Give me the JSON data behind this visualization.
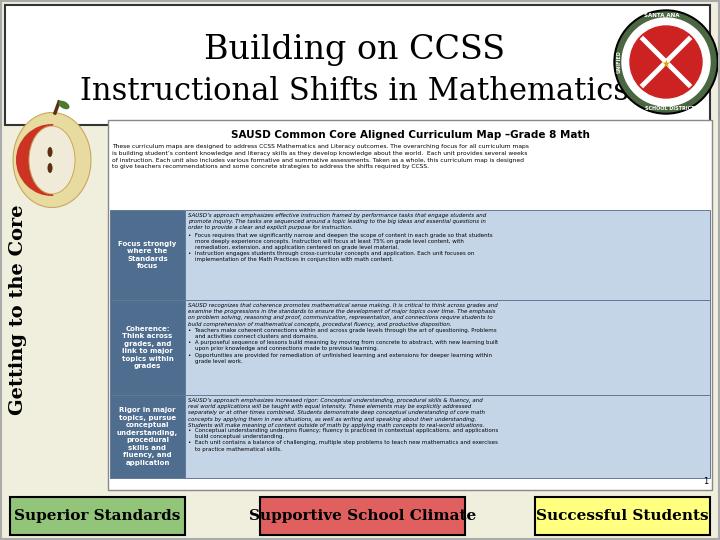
{
  "title_line1": "Building on CCSS",
  "title_line2": "Instructional Shifts in Mathematics",
  "bg_color": "#f0eedc",
  "sidebar_text": "Getting to the Core",
  "doc_title": "SAUSD Common Core Aligned Curriculum Map –Grade 8 Math",
  "table_rows": [
    {
      "left": "Focus strongly\nwhere the\nStandards\nfocus",
      "right_italic": "SAUSD’s approach emphasizes effective instruction framed by performance tasks that engage students and\npromote inquiry. The tasks are sequenced around a topic leading to the big ideas and essential questions in\norder to provide a clear and explicit purpose for instruction.",
      "right_bullets": "•  Focus requires that we significantly narrow and deepen the scope of content in each grade so that students\n    more deeply experience concepts. Instruction will focus at least 75% on grade level content, with\n    remediation, extension, and application centered on grade level material.\n•  Instruction engages students through cross-curricular concepts and application. Each unit focuses on\n    implementation of the Math Practices in conjunction with math content."
    },
    {
      "left": "Coherence:\nThink across\ngrades, and\nlink to major\ntopics within\ngrades",
      "right_italic": "SAUSD recognizes that coherence promotes mathematical sense making. It is critical to think across grades and\nexamine the progressions in the standards to ensure the development of major topics over time. The emphasis\non problem solving, reasoning and proof, communication, representation, and connections require students to\nbuild comprehension of mathematical concepts, procedural fluency, and productive disposition.",
      "right_bullets": "•  Teachers make coherent connections within and across grade levels through the art of questioning. Problems\n    and activities connect clusters and domains.\n•  A purposeful sequence of lessons build meaning by moving from concrete to abstract, with new learning built\n    upon prior knowledge and connections made to previous learning.\n•  Opportunities are provided for remediation of unfinished learning and extensions for deeper learning within\n    grade level work."
    },
    {
      "left": "Rigor in major\ntopics, pursue\nconceptual\nunderstanding,\nprocedural\nskills and\nfluency, and\napplication",
      "right_italic": "SAUSD’s approach emphasizes increased rigor: Conceptual understanding, procedural skills & fluency, and\nreal world applications will be taught with equal intensity. These elements may be explicitly addressed\nseparately or at other times combined. Students demonstrate deep conceptual understanding of core math\nconcepts by applying them in new situations, as well as writing and speaking about their understanding.\nStudents will make meaning of content outside of math by applying math concepts to real-world situations.",
      "right_bullets": "•  Conceptual understanding underpins fluency; fluency is practiced in contextual applications, and applications\n    build conceptual understanding.\n•  Each unit contains a balance of challenging, multiple step problems to teach new mathematics and exercises\n    to practice mathematical skills."
    }
  ],
  "table_left_bg": "#4f6d8f",
  "table_right_bg": "#c5d5e8",
  "footer_boxes": [
    {
      "text": "Superior Standards",
      "bg": "#92c47a",
      "border": "#000000"
    },
    {
      "text": "Supportive School Climate",
      "bg": "#e06060",
      "border": "#000000"
    },
    {
      "text": "Successful Students",
      "bg": "#ffff80",
      "border": "#000000"
    }
  ],
  "page_num": "1",
  "body_text": "These curriculum maps are designed to address CCSS Mathematics and Literacy outcomes. The overarching focus for all curriculum maps\nis building student’s content knowledge and literacy skills as they develop knowledge about the world.  Each unit provides several weeks\nof instruction. Each unit also includes various formative and summative assessments. Taken as a whole, this curriculum map is designed\nto give teachers recommendations and some concrete strategies to address the shifts required by CCSS."
}
